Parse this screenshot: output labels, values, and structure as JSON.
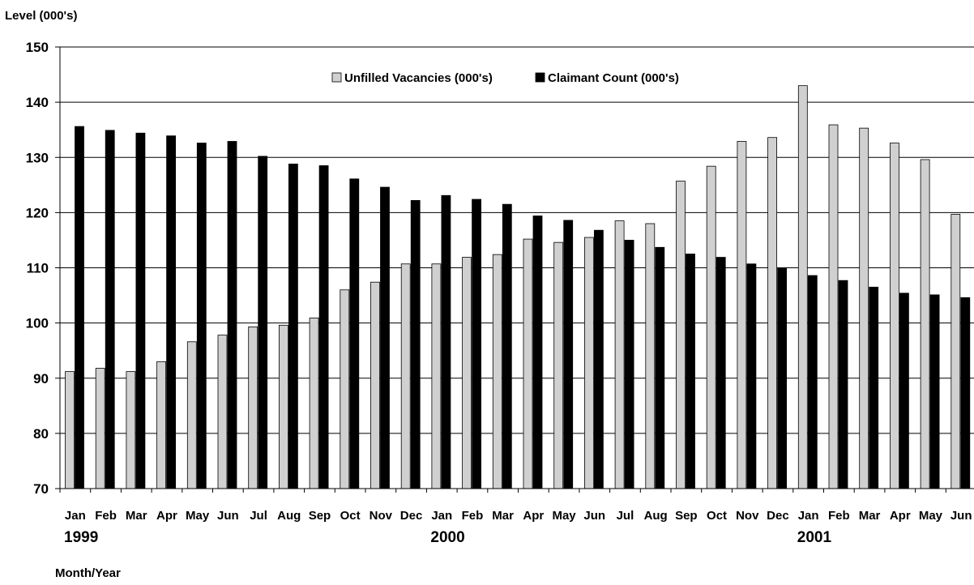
{
  "chart_data": {
    "type": "bar",
    "ylabel": "Level (000's)",
    "xlabel": "Month/Year",
    "ylim": [
      70,
      150
    ],
    "yticks": [
      70,
      80,
      90,
      100,
      110,
      120,
      130,
      140,
      150
    ],
    "grid": true,
    "legend_position": "top",
    "categories": [
      "Jan",
      "Feb",
      "Mar",
      "Apr",
      "May",
      "Jun",
      "Jul",
      "Aug",
      "Sep",
      "Oct",
      "Nov",
      "Dec",
      "Jan",
      "Feb",
      "Mar",
      "Apr",
      "May",
      "Jun",
      "Jul",
      "Aug",
      "Sep",
      "Oct",
      "Nov",
      "Dec",
      "Jan",
      "Feb",
      "Mar",
      "Apr",
      "May",
      "Jun"
    ],
    "year_labels": [
      {
        "label": "1999",
        "index": 0
      },
      {
        "label": "2000",
        "index": 12
      },
      {
        "label": "2001",
        "index": 24
      }
    ],
    "series": [
      {
        "name": "Unfilled Vacancies (000's)",
        "color": "#d0d0d0",
        "values": [
          91.2,
          91.8,
          91.2,
          93.0,
          96.6,
          97.8,
          99.3,
          99.6,
          100.9,
          106.0,
          107.4,
          110.7,
          110.7,
          111.9,
          112.4,
          115.2,
          114.6,
          115.5,
          118.5,
          118.0,
          125.7,
          128.4,
          132.9,
          133.6,
          143.0,
          135.9,
          135.3,
          132.6,
          129.6,
          119.7
        ]
      },
      {
        "name": "Claimant Count (000's)",
        "color": "#000000",
        "values": [
          135.6,
          134.9,
          134.4,
          133.9,
          132.6,
          132.9,
          130.2,
          128.8,
          128.5,
          126.1,
          124.6,
          122.2,
          123.1,
          122.4,
          121.5,
          119.4,
          118.6,
          116.8,
          115.0,
          113.7,
          112.5,
          111.9,
          110.7,
          110.0,
          108.6,
          107.7,
          106.5,
          105.4,
          105.1,
          104.6
        ]
      }
    ]
  }
}
